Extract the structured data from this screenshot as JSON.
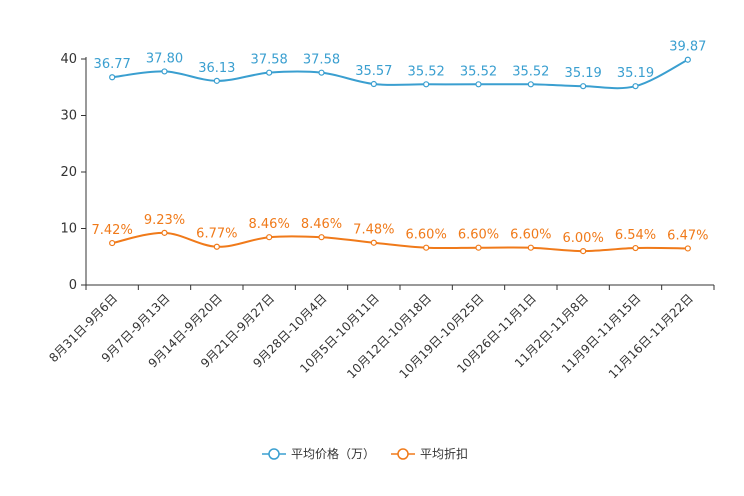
{
  "chart_data": {
    "type": "line",
    "categories": [
      "8月31日-9月6日",
      "9月7日-9月13日",
      "9月14日-9月20日",
      "9月21日-9月27日",
      "9月28日-10月4日",
      "10月5日-10月11日",
      "10月12日-10月18日",
      "10月19日-10月25日",
      "10月26日-11月1日",
      "11月2日-11月8日",
      "11月9日-11月15日",
      "11月16日-11月22日"
    ],
    "series": [
      {
        "name": "平均价格（万）",
        "color": "#3a9fd0",
        "values": [
          36.77,
          37.8,
          36.13,
          37.58,
          37.58,
          35.57,
          35.52,
          35.52,
          35.52,
          35.19,
          35.19,
          39.87
        ],
        "labels": [
          "36.77",
          "37.80",
          "36.13",
          "37.58",
          "37.58",
          "35.57",
          "35.52",
          "35.52",
          "35.52",
          "35.19",
          "35.19",
          "39.87"
        ]
      },
      {
        "name": "平均折扣",
        "color": "#f07a1a",
        "values": [
          7.42,
          9.23,
          6.77,
          8.46,
          8.46,
          7.48,
          6.6,
          6.6,
          6.6,
          6.0,
          6.54,
          6.47
        ],
        "labels": [
          "7.42%",
          "9.23%",
          "6.77%",
          "8.46%",
          "8.46%",
          "7.48%",
          "6.60%",
          "6.60%",
          "6.60%",
          "6.00%",
          "6.54%",
          "6.47%"
        ]
      }
    ],
    "yticks": [
      "0",
      "10",
      "20",
      "30",
      "40"
    ],
    "ylim": [
      0,
      40
    ],
    "title": "",
    "xlabel": "",
    "ylabel": "",
    "legend_position": "bottom-center"
  }
}
